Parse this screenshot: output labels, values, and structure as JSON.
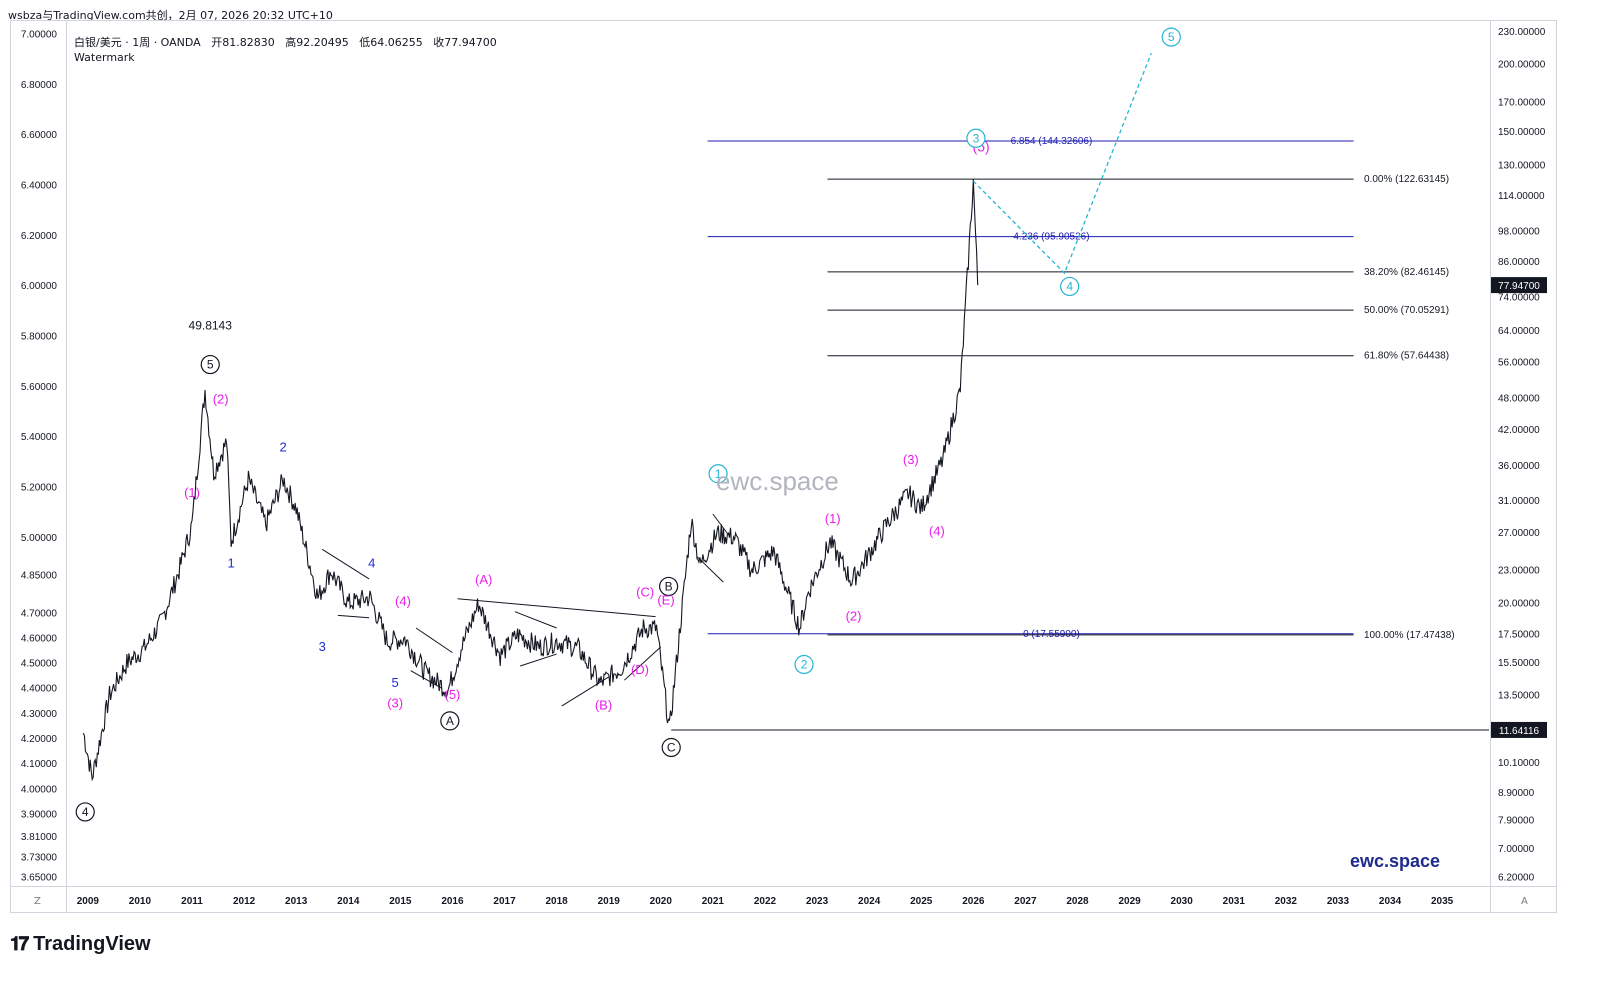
{
  "header": {
    "publisher": "wsbza与TradingView.com共创，2月 07, 2026 20:32 UTC+10"
  },
  "legend": {
    "symbol": "白银/美元 · 1周 · OANDA",
    "open_label": "开",
    "open": "81.82830",
    "high_label": "高",
    "high": "92.20495",
    "low_label": "低",
    "low": "64.06255",
    "close_label": "收",
    "close": "77.94700",
    "watermark": "Watermark"
  },
  "watermark_center": "ewc.space",
  "brand": "ewc.space",
  "footer": {
    "logo_text": "TradingView",
    "axis_left_btn": "Z",
    "axis_right_btn": "A"
  },
  "colors": {
    "candles": "#131722",
    "magenta": "#e91ee9",
    "blue": "#1e2ed6",
    "cyan": "#22b5d4",
    "fib_blue": "#1b1bb0",
    "fib_black": "#131722",
    "price_tag_bg": "#131722"
  },
  "chart_data": {
    "type": "line",
    "scales": "log",
    "x_axis": {
      "ticks": [
        "2009",
        "2010",
        "2011",
        "2012",
        "2013",
        "2014",
        "2015",
        "2016",
        "2017",
        "2018",
        "2019",
        "2020",
        "2021",
        "2022",
        "2023",
        "2024",
        "2025",
        "2026",
        "2027",
        "2028",
        "2029",
        "2030",
        "2031",
        "2032",
        "2033",
        "2034",
        "2035"
      ]
    },
    "left_axis": {
      "ticks": [
        "7.00000",
        "6.80000",
        "6.60000",
        "6.40000",
        "6.20000",
        "6.00000",
        "5.80000",
        "5.60000",
        "5.40000",
        "5.20000",
        "5.00000",
        "4.85000",
        "4.70000",
        "4.60000",
        "4.50000",
        "4.40000",
        "4.30000",
        "4.20000",
        "4.10000",
        "4.00000",
        "3.90000",
        "3.81000",
        "3.73000",
        "3.65000"
      ]
    },
    "right_axis": {
      "ticks": [
        "230.00000",
        "200.00000",
        "170.00000",
        "150.00000",
        "130.00000",
        "114.00000",
        "98.00000",
        "86.00000",
        "74.00000",
        "64.00000",
        "56.00000",
        "48.00000",
        "42.00000",
        "36.00000",
        "31.00000",
        "27.00000",
        "23.00000",
        "20.00000",
        "17.50000",
        "15.50000",
        "13.50000",
        "11.50000",
        "10.10000",
        "8.90000",
        "7.90000",
        "7.00000",
        "6.20000"
      ],
      "price_tags": [
        "77.94700",
        "11.64116"
      ]
    },
    "series": [
      {
        "x": [
          "2008-12",
          "2009-02",
          "2009-06",
          "2009-10",
          "2010-02",
          "2010-06",
          "2010-10",
          "2011-01",
          "2011-04",
          "2011-06",
          "2011-09",
          "2011-10",
          "2012-02",
          "2012-06",
          "2012-10",
          "2013-01",
          "2013-06",
          "2013-09",
          "2014-01",
          "2014-06",
          "2014-10",
          "2015-02",
          "2015-07",
          "2015-12",
          "2016-03",
          "2016-07",
          "2016-12",
          "2017-04",
          "2017-09",
          "2018-01",
          "2018-06",
          "2018-11",
          "2019-04",
          "2019-09",
          "2019-12",
          "2020-03",
          "2020-08",
          "2020-10",
          "2021-02",
          "2021-06",
          "2021-10",
          "2022-03",
          "2022-09",
          "2022-11",
          "2023-04",
          "2023-09",
          "2023-12",
          "2024-05",
          "2024-10",
          "2025-01",
          "2025-06",
          "2025-10",
          "2026-01",
          "2026-02"
        ],
        "values": [
          11.5,
          9.5,
          13.5,
          15.5,
          16.5,
          18.5,
          23,
          28,
          49.8,
          35,
          40,
          26,
          34,
          28,
          34,
          30,
          20.5,
          23,
          20,
          20.5,
          17,
          17.2,
          14.8,
          13.8,
          16.5,
          20,
          16,
          17.5,
          16.6,
          17,
          16.5,
          14.2,
          15.2,
          18,
          18,
          11.64,
          28.5,
          23.5,
          27,
          26.5,
          23,
          25,
          18,
          21,
          26,
          22,
          24,
          28,
          32,
          30,
          37,
          50,
          121.6,
          77.947
        ]
      }
    ],
    "fib_levels": [
      {
        "label": "6.854 (144.32606)",
        "value": 144.32606
      },
      {
        "label": "0.00% (122.63145)",
        "value": 122.63145
      },
      {
        "label": "4.236 (95.90526)",
        "value": 95.90526
      },
      {
        "label": "38.20% (82.46145)",
        "value": 82.46145
      },
      {
        "label": "50.00% (70.05291)",
        "value": 70.05291
      },
      {
        "label": "61.80% (57.64438)",
        "value": 57.64438
      },
      {
        "label": "0 (17.55900)",
        "value": 17.559
      },
      {
        "label": "100.00% (17.47438)",
        "value": 17.47438
      }
    ],
    "annotations": {
      "peak_label": "49.8143",
      "wave_black": [
        "5",
        "4",
        "A",
        "B",
        "C"
      ],
      "wave_magenta": [
        "(1)",
        "(2)",
        "(3)",
        "(4)",
        "(5)",
        "(A)",
        "(B)",
        "(C)",
        "(D)",
        "(E)",
        "(1)",
        "(2)",
        "(3)",
        "(4)",
        "(5)"
      ],
      "wave_blue": [
        "1",
        "2",
        "3",
        "4",
        "5"
      ],
      "wave_cyan": [
        "1",
        "2",
        "3",
        "4",
        "5"
      ]
    },
    "projection": {
      "type": "dashed",
      "x": [
        "2026-01",
        "2027-10",
        "2029-06"
      ],
      "values": [
        121.6,
        82,
        210
      ]
    }
  }
}
